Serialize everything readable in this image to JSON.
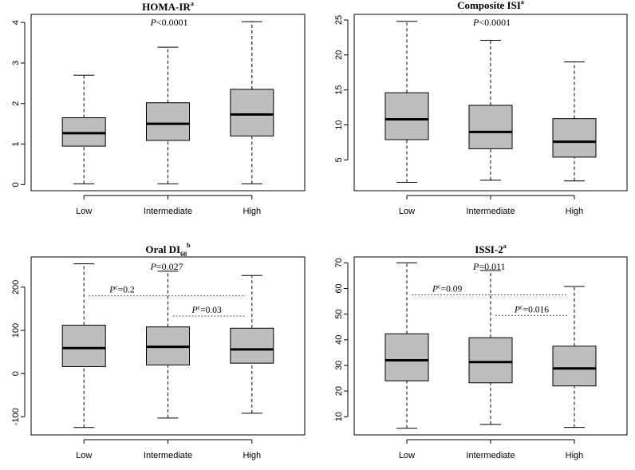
{
  "chart_data": [
    {
      "type": "box",
      "title": "HOMA-IR",
      "title_sub": "",
      "title_sup": "a",
      "p_value": {
        "italic": "P",
        "sup": "",
        "text": "<0.0001"
      },
      "categories": [
        "Low",
        "Intermediate",
        "High"
      ],
      "yticks": [
        0,
        1,
        2,
        3,
        4
      ],
      "ylim": [
        -0.15,
        4.2
      ],
      "boxes": [
        {
          "min": 0.02,
          "q1": 0.95,
          "median": 1.27,
          "q3": 1.65,
          "max": 2.7
        },
        {
          "min": 0.02,
          "q1": 1.09,
          "median": 1.5,
          "q3": 2.02,
          "max": 3.39
        },
        {
          "min": 0.02,
          "q1": 1.2,
          "median": 1.73,
          "q3": 2.35,
          "max": 4.02
        }
      ],
      "comparisons": []
    },
    {
      "type": "box",
      "title": "Composite ISI",
      "title_sub": "",
      "title_sup": "a",
      "p_value": {
        "italic": "P",
        "sup": "",
        "text": "<0.0001"
      },
      "categories": [
        "Low",
        "Intermediate",
        "High"
      ],
      "yticks": [
        5,
        10,
        15,
        20,
        25
      ],
      "ylim": [
        0.6,
        25.8
      ],
      "boxes": [
        {
          "min": 1.8,
          "q1": 7.9,
          "median": 10.8,
          "q3": 14.6,
          "max": 24.8
        },
        {
          "min": 2.1,
          "q1": 6.6,
          "median": 9.0,
          "q3": 12.8,
          "max": 22.1
        },
        {
          "min": 2.0,
          "q1": 5.4,
          "median": 7.6,
          "q3": 10.9,
          "max": 19.0
        }
      ],
      "comparisons": []
    },
    {
      "type": "box",
      "title": "Oral DI",
      "title_sub": "60",
      "title_sup": "b",
      "p_value": {
        "italic": "P",
        "sup": "",
        "text": "=0.027"
      },
      "categories": [
        "Low",
        "Intermediate",
        "High"
      ],
      "yticks": [
        -100,
        0,
        100,
        200
      ],
      "ylim": [
        -142,
        270
      ],
      "boxes": [
        {
          "min": -125,
          "q1": 16,
          "median": 59,
          "q3": 112,
          "max": 254
        },
        {
          "min": -103,
          "q1": 20,
          "median": 62,
          "q3": 108,
          "max": 237
        },
        {
          "min": -92,
          "q1": 24,
          "median": 56,
          "q3": 105,
          "max": 227
        }
      ],
      "comparisons": [
        {
          "from": 0,
          "to": 2,
          "y": 180,
          "label_italic": "P",
          "label_sup": "c",
          "label": "=0.2"
        },
        {
          "from": 1,
          "to": 2,
          "y": 133,
          "label_italic": "P",
          "label_sup": "c",
          "label": "=0.03"
        }
      ]
    },
    {
      "type": "box",
      "title": "ISSI-2",
      "title_sub": "",
      "title_sup": "a",
      "p_value": {
        "italic": "P",
        "sup": "",
        "text": "=0.011"
      },
      "categories": [
        "Low",
        "Intermediate",
        "High"
      ],
      "yticks": [
        10,
        20,
        30,
        40,
        50,
        60,
        70
      ],
      "ylim": [
        2.9,
        72.3
      ],
      "boxes": [
        {
          "min": 5.5,
          "q1": 24,
          "median": 32,
          "q3": 42.3,
          "max": 70
        },
        {
          "min": 7.0,
          "q1": 23.2,
          "median": 31.3,
          "q3": 40.8,
          "max": 67.0
        },
        {
          "min": 5.8,
          "q1": 22.0,
          "median": 28.8,
          "q3": 37.5,
          "max": 60.8
        }
      ],
      "comparisons": [
        {
          "from": 0,
          "to": 2,
          "y": 57.5,
          "label_italic": "P",
          "label_sup": "c",
          "label": "=0.09"
        },
        {
          "from": 1,
          "to": 2,
          "y": 49.5,
          "label_italic": "P",
          "label_sup": "c",
          "label": "=0.016"
        }
      ]
    }
  ]
}
